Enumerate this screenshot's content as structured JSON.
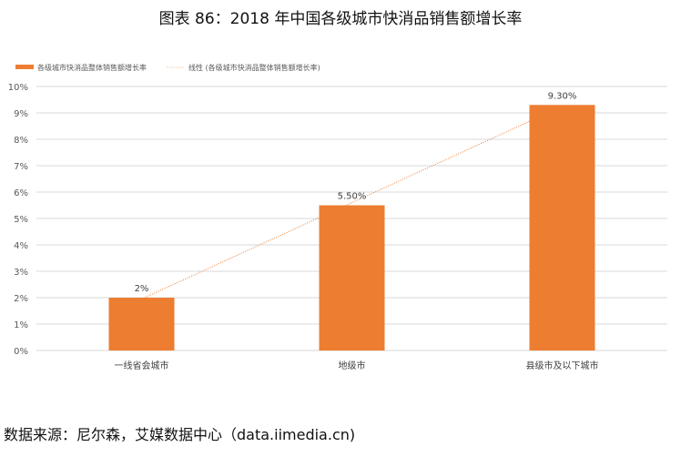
{
  "title": "图表 86：2018 年中国各级城市快消品销售额增长率",
  "source": "数据来源：尼尔森，艾媒数据中心（data.iimedia.cn)",
  "chart_data": {
    "type": "bar",
    "categories": [
      "一线省会城市",
      "地级市",
      "县级市及以下城市"
    ],
    "series": [
      {
        "name": "各级城市快消品整体销售额增长率",
        "values": [
          2,
          5.5,
          9.3
        ],
        "labels": [
          "2%",
          "5.50%",
          "9.30%"
        ],
        "color": "#ED7D31"
      }
    ],
    "trendline": {
      "name": "线性 (各级城市快消品整体销售额增长率)",
      "type": "linear",
      "style": "dotted",
      "color": "#F4B183"
    },
    "ylim": [
      0,
      10
    ],
    "yticks": [
      "0%",
      "1%",
      "2%",
      "3%",
      "4%",
      "5%",
      "6%",
      "7%",
      "8%",
      "9%",
      "10%"
    ],
    "grid": true,
    "legend": "top-left"
  }
}
